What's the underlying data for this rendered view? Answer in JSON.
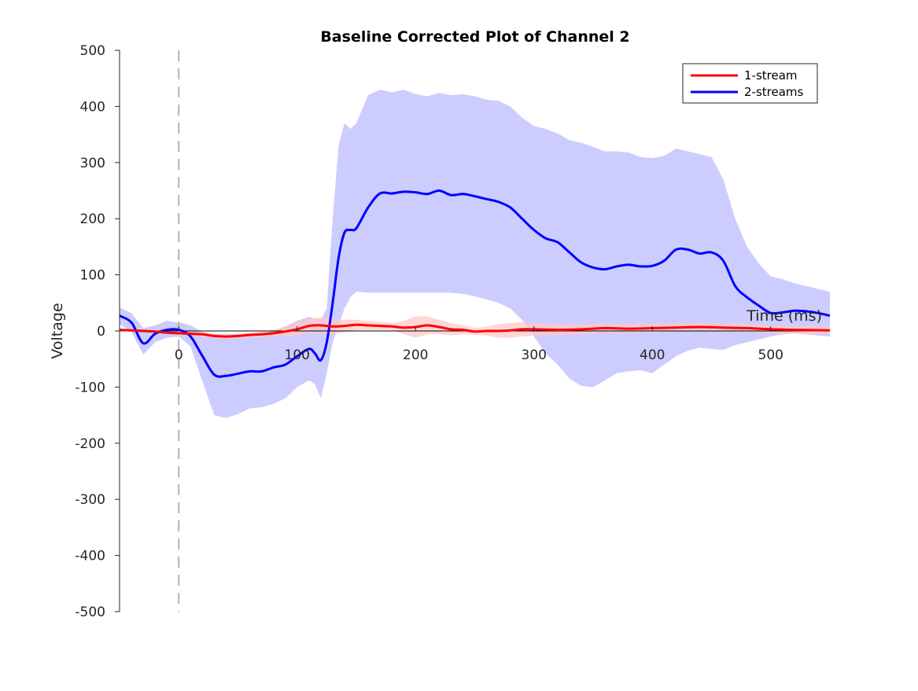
{
  "chart_data": {
    "type": "line",
    "title": "Baseline Corrected Plot of Channel 2",
    "xlabel": "Time (ms)",
    "ylabel": "Voltage",
    "xlim": [
      -50,
      550
    ],
    "ylim": [
      -500,
      500
    ],
    "xticks": [
      0,
      100,
      200,
      300,
      400,
      500
    ],
    "yticks": [
      -500,
      -400,
      -300,
      -200,
      -100,
      0,
      100,
      200,
      300,
      400,
      500
    ],
    "grid": false,
    "legend_position": "top-right",
    "event_marker_x": 0,
    "series": [
      {
        "name": "1-stream",
        "color": "#ff0000",
        "band_color": "#ffc8c8",
        "x": [
          -50,
          -40,
          -30,
          -20,
          -10,
          0,
          10,
          20,
          30,
          40,
          50,
          60,
          70,
          80,
          90,
          100,
          110,
          120,
          130,
          140,
          150,
          160,
          170,
          180,
          190,
          200,
          210,
          220,
          230,
          240,
          250,
          260,
          270,
          280,
          290,
          300,
          320,
          340,
          360,
          380,
          400,
          420,
          440,
          460,
          480,
          500,
          520,
          550
        ],
        "y": [
          2,
          1,
          0,
          -1,
          -3,
          -4,
          -5,
          -6,
          -9,
          -10,
          -9,
          -7,
          -6,
          -4,
          -1,
          3,
          9,
          10,
          8,
          9,
          11,
          10,
          9,
          8,
          6,
          7,
          10,
          7,
          3,
          2,
          -1,
          0,
          0,
          1,
          3,
          3,
          2,
          3,
          5,
          4,
          5,
          6,
          7,
          6,
          5,
          3,
          2,
          1
        ],
        "upper": [
          4,
          3,
          2,
          1,
          -1,
          -1,
          -2,
          -2,
          -5,
          -6,
          -5,
          -3,
          -1,
          2,
          8,
          15,
          22,
          24,
          22,
          20,
          20,
          18,
          16,
          14,
          18,
          26,
          26,
          20,
          14,
          10,
          5,
          8,
          12,
          14,
          16,
          14,
          12,
          12,
          13,
          12,
          13,
          13,
          14,
          13,
          12,
          10,
          9,
          8
        ],
        "lower": [
          0,
          -1,
          -2,
          -3,
          -5,
          -7,
          -8,
          -10,
          -13,
          -14,
          -13,
          -11,
          -11,
          -10,
          -10,
          -9,
          -4,
          -4,
          -6,
          -2,
          2,
          2,
          2,
          2,
          -6,
          -12,
          -6,
          -6,
          -8,
          -6,
          -7,
          -8,
          -12,
          -12,
          -10,
          -8,
          -8,
          -6,
          -3,
          -4,
          -3,
          -1,
          0,
          -1,
          -2,
          -4,
          -5,
          -6
        ]
      },
      {
        "name": "2-streams",
        "color": "#0000ff",
        "band_color": "#ccccff",
        "x": [
          -50,
          -40,
          -30,
          -20,
          -10,
          0,
          10,
          20,
          30,
          40,
          50,
          60,
          70,
          80,
          90,
          100,
          110,
          115,
          120,
          125,
          130,
          135,
          140,
          145,
          150,
          160,
          170,
          180,
          190,
          200,
          210,
          220,
          230,
          240,
          250,
          260,
          270,
          280,
          290,
          300,
          310,
          320,
          330,
          340,
          350,
          360,
          370,
          380,
          390,
          400,
          410,
          420,
          430,
          440,
          450,
          460,
          470,
          480,
          490,
          500,
          510,
          520,
          530,
          540,
          550
        ],
        "y": [
          27,
          15,
          -22,
          -5,
          2,
          2,
          -10,
          -45,
          -78,
          -80,
          -76,
          -72,
          -72,
          -65,
          -60,
          -45,
          -32,
          -40,
          -52,
          -20,
          50,
          130,
          175,
          180,
          183,
          220,
          245,
          245,
          248,
          247,
          244,
          250,
          242,
          244,
          240,
          235,
          230,
          220,
          200,
          180,
          165,
          158,
          140,
          122,
          113,
          110,
          115,
          118,
          115,
          116,
          125,
          145,
          145,
          138,
          140,
          125,
          80,
          60,
          45,
          32,
          33,
          36,
          35,
          32,
          27
        ],
        "upper": [
          42,
          32,
          5,
          10,
          18,
          15,
          10,
          -2,
          -5,
          -5,
          -6,
          -6,
          -4,
          0,
          8,
          18,
          25,
          22,
          20,
          40,
          200,
          330,
          370,
          360,
          370,
          420,
          430,
          425,
          430,
          422,
          418,
          424,
          420,
          422,
          418,
          412,
          410,
          400,
          380,
          365,
          360,
          352,
          340,
          335,
          328,
          320,
          320,
          318,
          310,
          308,
          312,
          325,
          320,
          315,
          310,
          270,
          200,
          150,
          120,
          97,
          92,
          85,
          80,
          75,
          70
        ],
        "lower": [
          12,
          -2,
          -42,
          -20,
          -12,
          -10,
          -28,
          -90,
          -150,
          -155,
          -148,
          -138,
          -136,
          -130,
          -120,
          -100,
          -88,
          -95,
          -120,
          -75,
          -20,
          10,
          40,
          60,
          70,
          68,
          68,
          68,
          68,
          68,
          68,
          68,
          68,
          66,
          62,
          56,
          50,
          40,
          20,
          -10,
          -40,
          -60,
          -85,
          -98,
          -100,
          -88,
          -75,
          -72,
          -70,
          -75,
          -60,
          -45,
          -35,
          -30,
          -32,
          -34,
          -25,
          -20,
          -15,
          -10,
          -6,
          -4,
          -6,
          -8,
          -10
        ]
      }
    ]
  }
}
